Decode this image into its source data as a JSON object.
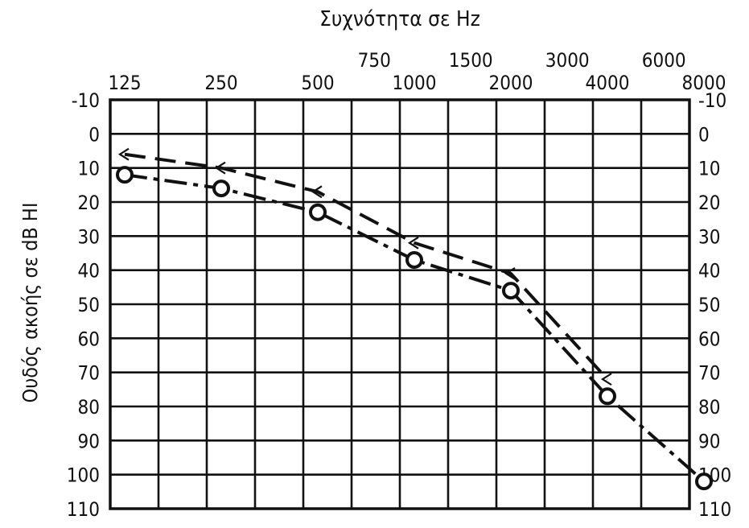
{
  "chart_data": {
    "type": "line",
    "title": "Συχνότητα σε Hz",
    "xlabel": "Συχνότητα σε Hz",
    "ylabel": "Ουδός ακοής σε dB HI",
    "x_ticks_main": [
      "125",
      "250",
      "500",
      "1000",
      "2000",
      "4000",
      "8000"
    ],
    "x_ticks_mid": [
      "750",
      "1500",
      "3000",
      "6000"
    ],
    "y_ticks": [
      "-10",
      "0",
      "10",
      "20",
      "30",
      "40",
      "50",
      "60",
      "70",
      "80",
      "90",
      "100",
      "110"
    ],
    "ylim": [
      -10,
      110
    ],
    "y_inverted": true,
    "grid": true,
    "series": [
      {
        "marker": "O",
        "line_style": "long-dash dot",
        "points": [
          {
            "x": 125,
            "y": 12
          },
          {
            "x": 250,
            "y": 16
          },
          {
            "x": 500,
            "y": 23
          },
          {
            "x": 1000,
            "y": 37
          },
          {
            "x": 2000,
            "y": 46
          },
          {
            "x": 4000,
            "y": 77
          },
          {
            "x": 8000,
            "y": 102
          }
        ]
      },
      {
        "marker": "<",
        "line_style": "long-dash",
        "points": [
          {
            "x": 125,
            "y": 6
          },
          {
            "x": 250,
            "y": 10
          },
          {
            "x": 500,
            "y": 17
          },
          {
            "x": 1000,
            "y": 32
          },
          {
            "x": 2000,
            "y": 41
          },
          {
            "x": 4000,
            "y": 72
          }
        ]
      }
    ]
  }
}
